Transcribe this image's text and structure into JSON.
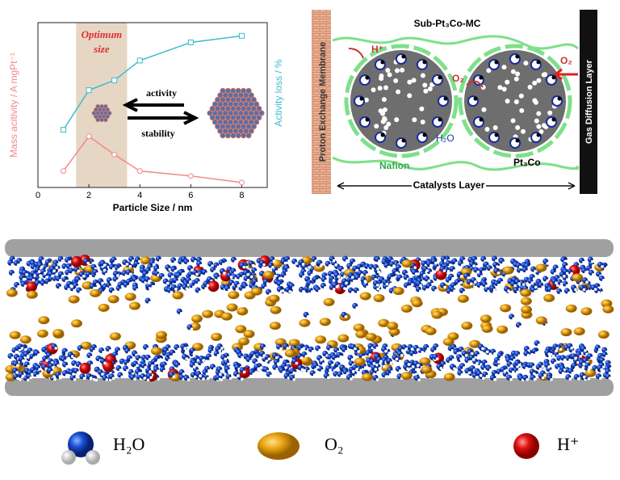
{
  "chart_data": {
    "type": "line",
    "x_label": "Particle Size / nm",
    "y_label": "Mass acitivity / A mgPt⁻¹",
    "y2_label": "Activity loss / %",
    "x": [
      1,
      2,
      3,
      4,
      6,
      8
    ],
    "xlim": [
      0,
      9
    ],
    "xticks": [
      0,
      2,
      4,
      6,
      8
    ],
    "ylim": [
      0,
      1
    ],
    "y2lim": [
      0,
      1
    ],
    "series": [
      {
        "color": "#f08a8a",
        "values": [
          0.1,
          0.31,
          0.2,
          0.1,
          0.07,
          0.03
        ]
      },
      {
        "color": "#3cbccc",
        "axis": "y2",
        "values": [
          0.35,
          0.59,
          0.65,
          0.77,
          0.88,
          0.92
        ]
      }
    ],
    "shaded_region": {
      "label": [
        "Optimum",
        "size"
      ],
      "xlim": [
        1.5,
        3.5
      ],
      "color": "#e6d6c4"
    },
    "annotations": [
      "activity",
      "stability"
    ]
  },
  "diagram": {
    "title": "Sub-Pt₃Co-MC",
    "left_layer": "Proton Exchange Membrane",
    "right_layer": "Gas Diffusion Layer",
    "labels": [
      "H⁺",
      "O₂",
      "O₂",
      "H₂O",
      "Nafion",
      "Pt₃Co"
    ],
    "bottom_label": "Catalysts Layer"
  },
  "legend": [
    "H₂O",
    "O₂",
    "H⁺"
  ]
}
